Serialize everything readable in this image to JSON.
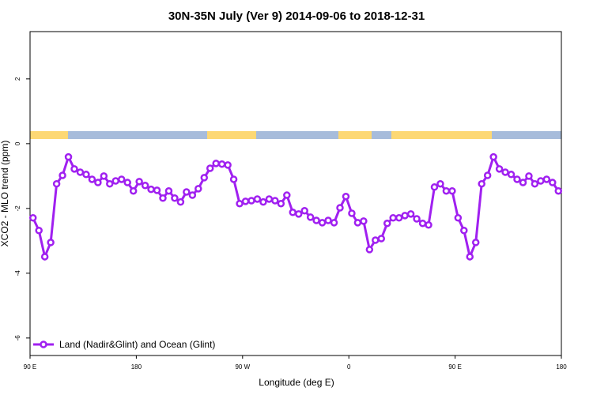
{
  "chart_data": {
    "type": "line",
    "title": "30N-35N July (Ver 9)   2014-09-06 to 2018-12-31",
    "x_label": "Longitude (deg E)",
    "y_label": "XCO2 - MLO trend (ppm)",
    "xlim": [
      90,
      540
    ],
    "ylim": [
      -6.54,
      3.46
    ],
    "xticks": [
      {
        "value": 90,
        "label": "90 E"
      },
      180,
      {
        "value": 270,
        "label": "90 W"
      },
      {
        "value": 360,
        "label": "0"
      },
      {
        "value": 450,
        "label": "90 E"
      },
      {
        "value": 540,
        "label": "180"
      }
    ],
    "yticks": [
      -6,
      -4,
      -2,
      0,
      2
    ],
    "legend": "bottom-left",
    "x": [
      92.5,
      97.5,
      102.5,
      107.5,
      112.5,
      117.5,
      122.5,
      127.5,
      132.5,
      137.5,
      142.5,
      147.5,
      152.5,
      157.5,
      162.5,
      167.5,
      172.5,
      177.5,
      182.5,
      187.5,
      192.5,
      197.5,
      202.5,
      207.5,
      212.5,
      217.5,
      222.5,
      227.5,
      232.5,
      237.5,
      242.5,
      247.5,
      252.5,
      257.5,
      262.5,
      267.5,
      272.5,
      277.5,
      282.5,
      287.5,
      292.5,
      297.5,
      302.5,
      307.5,
      312.5,
      317.5,
      322.5,
      327.5,
      332.5,
      337.5,
      342.5,
      347.5,
      352.5,
      357.5,
      362.5,
      367.5,
      372.5,
      377.5,
      382.5,
      387.5,
      392.5,
      397.5,
      402.5,
      407.5,
      412.5,
      417.5,
      422.5,
      427.5,
      432.5,
      437.5,
      442.5,
      447.5,
      452.5,
      457.5,
      462.5,
      467.5,
      472.5,
      477.5,
      482.5,
      487.5,
      492.5,
      497.5,
      502.5,
      507.5,
      512.5,
      517.5,
      522.5,
      527.5,
      532.5,
      537.5
    ],
    "series": [
      {
        "name": "Land (Nadir&Glint) and Ocean (Glint)",
        "color": "#a020f0",
        "values": [
          -2.29,
          -2.68,
          -3.49,
          -3.05,
          -1.24,
          -0.98,
          -0.41,
          -0.78,
          -0.88,
          -0.95,
          -1.1,
          -1.2,
          -1.0,
          -1.24,
          -1.15,
          -1.1,
          -1.2,
          -1.46,
          -1.17,
          -1.29,
          -1.41,
          -1.44,
          -1.68,
          -1.46,
          -1.68,
          -1.8,
          -1.49,
          -1.59,
          -1.39,
          -1.05,
          -0.76,
          -0.61,
          -0.63,
          -0.66,
          -1.1,
          -1.85,
          -1.78,
          -1.76,
          -1.71,
          -1.8,
          -1.71,
          -1.76,
          -1.85,
          -1.59,
          -2.12,
          -2.17,
          -2.07,
          -2.27,
          -2.37,
          -2.44,
          -2.37,
          -2.44,
          -1.98,
          -1.63,
          -2.15,
          -2.44,
          -2.39,
          -3.27,
          -2.98,
          -2.93,
          -2.46,
          -2.29,
          -2.29,
          -2.22,
          -2.17,
          -2.32,
          -2.46,
          -2.51,
          -1.34,
          -1.24,
          -1.46,
          -1.46,
          -2.29,
          -2.68,
          -3.49,
          -3.05,
          -1.24,
          -0.98,
          -0.41,
          -0.78,
          -0.88,
          -0.95,
          -1.1,
          -1.2,
          -1.0,
          -1.24,
          -1.15,
          -1.1,
          -1.2,
          -1.46
        ]
      }
    ]
  }
}
